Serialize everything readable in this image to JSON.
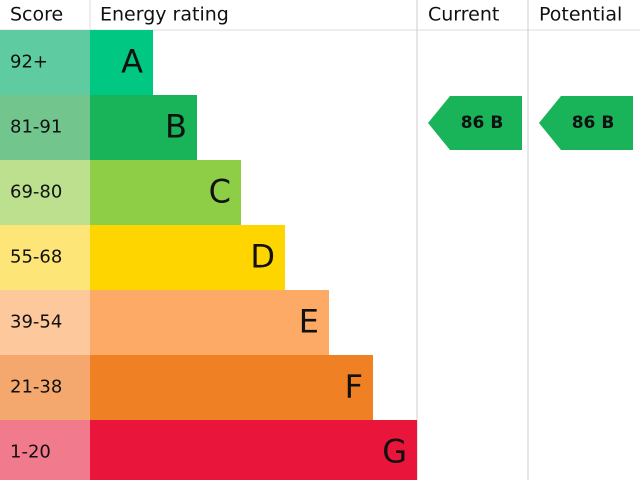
{
  "header": {
    "score": "Score",
    "rating": "Energy rating",
    "current": "Current",
    "potential": "Potential"
  },
  "bands": [
    {
      "score": "92+",
      "letter": "A",
      "color": "#00c781",
      "tint": "#5fcba0"
    },
    {
      "score": "81-91",
      "letter": "B",
      "color": "#19b459",
      "tint": "#72c58d"
    },
    {
      "score": "69-80",
      "letter": "C",
      "color": "#8dce46",
      "tint": "#bce08e"
    },
    {
      "score": "55-68",
      "letter": "D",
      "color": "#ffd500",
      "tint": "#fde578"
    },
    {
      "score": "39-54",
      "letter": "E",
      "color": "#fcaa65",
      "tint": "#fcc89c"
    },
    {
      "score": "21-38",
      "letter": "F",
      "color": "#ef8023",
      "tint": "#f4a86e"
    },
    {
      "score": "1-20",
      "letter": "G",
      "color": "#e9153b",
      "tint": "#f17a8c"
    }
  ],
  "current": {
    "value": 86,
    "rating": "B"
  },
  "potential": {
    "value": 86,
    "rating": "B"
  }
}
